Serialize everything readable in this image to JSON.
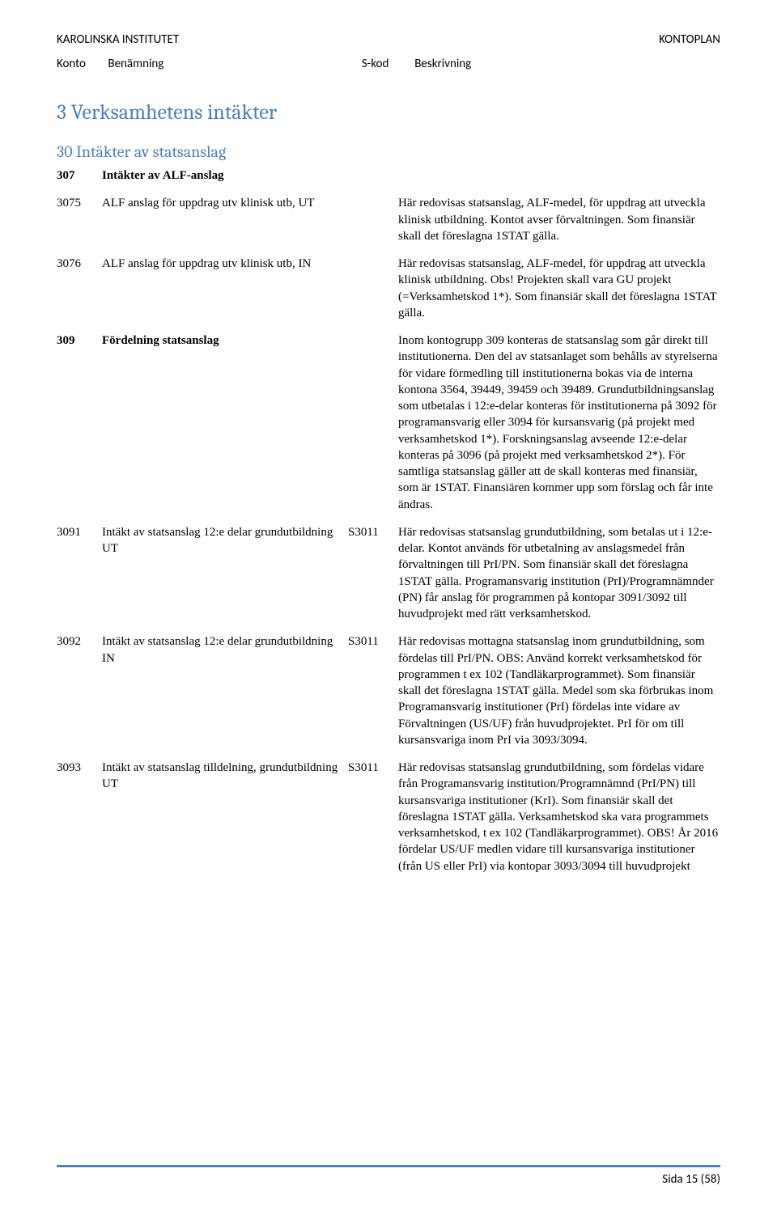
{
  "header": {
    "left": "KAROLINSKA INSTITUTET",
    "right": "KONTOPLAN"
  },
  "subheader": {
    "konto": "Konto",
    "ben": "Benämning",
    "skod": "S-kod",
    "desc": "Beskrivning"
  },
  "h1": "3 Verksamhetens intäkter",
  "h2": "30 Intäkter av statsanslag",
  "rows": [
    {
      "konto": "307",
      "ben": "Intäkter av ALF-anslag",
      "skod": "",
      "desc": "",
      "boldKonto": true,
      "boldBen": true
    },
    {
      "konto": "3075",
      "ben": "ALF anslag för uppdrag utv klinisk utb, UT",
      "skod": "",
      "desc": "Här redovisas statsanslag, ALF-medel, för uppdrag att utveckla klinisk utbildning. Kontot avser förvaltningen. Som finansiär skall det föreslagna 1STAT gälla."
    },
    {
      "konto": "3076",
      "ben": "ALF anslag för uppdrag utv klinisk utb, IN",
      "skod": "",
      "desc": "Här redovisas statsanslag, ALF-medel, för uppdrag att utveckla klinisk utbildning. Obs! Projekten skall vara GU projekt (=Verksamhetskod 1*). Som finansiär skall det föreslagna 1STAT gälla."
    },
    {
      "konto": "309",
      "ben": "Fördelning statsanslag",
      "skod": "",
      "desc": "Inom kontogrupp 309 konteras de statsanslag som går direkt till institutionerna. Den del av statsanlaget som behålls av styrelserna för vidare förmedling till institutionerna bokas via de interna kontona 3564, 39449, 39459 och 39489. Grundutbildningsanslag som utbetalas i 12:e-delar konteras för institutionerna på 3092 för programansvarig eller 3094 för kursansvarig (på projekt med verksamhetskod 1*). Forskningsanslag avseende 12:e-delar konteras på 3096 (på projekt med verksamhetskod 2*). För samtliga statsanslag gäller att de skall konteras med finansiär, som är 1STAT. Finansiären kommer upp som förslag och får inte ändras.",
      "boldKonto": true,
      "boldBen": true
    },
    {
      "konto": "3091",
      "ben": "Intäkt av statsanslag 12:e delar grundutbildning UT",
      "skod": "S3011",
      "desc": "Här redovisas statsanslag grundutbildning, som betalas ut i 12:e-delar. Kontot används för utbetalning av anslagsmedel från förvaltningen till PrI/PN.  Som finansiär skall det föreslagna 1STAT gälla. Programansvarig institution (PrI)/Programnämnder (PN) får anslag för programmen på kontopar 3091/3092 till huvudprojekt med rätt verksamhetskod."
    },
    {
      "konto": "3092",
      "ben": "Intäkt av statsanslag 12:e delar grundutbildning IN",
      "skod": "S3011",
      "desc": "Här redovisas mottagna statsanslag inom grundutbildning, som fördelas till PrI/PN. OBS: Använd korrekt verksamhetskod för programmen t ex 102 (Tandläkarprogrammet). Som finansiär skall det föreslagna 1STAT gälla. Medel som ska förbrukas inom Programansvarig institutioner (PrI) fördelas inte vidare av Förvaltningen (US/UF) från huvudprojektet. PrI för om till kursansvariga inom PrI via 3093/3094."
    },
    {
      "konto": "3093",
      "ben": "Intäkt av statsanslag tilldelning, grundutbildning UT",
      "skod": "S3011",
      "desc": "Här redovisas statsanslag grundutbildning, som fördelas vidare från Programansvarig institution/Programnämnd (PrI/PN) till kursansvariga institutioner (KrI). Som finansiär skall det föreslagna 1STAT gälla. Verksamhetskod ska vara programmets verksamhetskod, t ex 102 (Tandläkarprogrammet).  OBS! År 2016 fördelar US/UF medlen vidare till kursansvariga institutioner (från US eller PrI) via kontopar 3093/3094 till huvudprojekt"
    }
  ],
  "footer": "Sida 15 (58)",
  "colors": {
    "heading": "#4f81bd",
    "rule": "#4f81bd",
    "text": "#000000",
    "bg": "#ffffff"
  },
  "fonts": {
    "body": "Times New Roman",
    "ui": "Calibri",
    "heading": "Cambria"
  }
}
